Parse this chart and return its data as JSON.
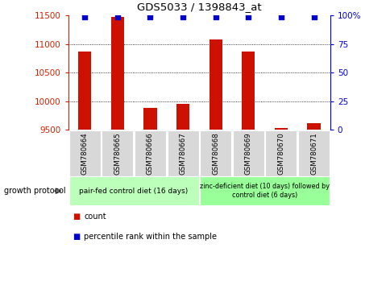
{
  "title": "GDS5033 / 1398843_at",
  "samples": [
    "GSM780664",
    "GSM780665",
    "GSM780666",
    "GSM780667",
    "GSM780668",
    "GSM780669",
    "GSM780670",
    "GSM780671"
  ],
  "counts": [
    10870,
    11480,
    9880,
    9950,
    11080,
    10870,
    9530,
    9620
  ],
  "percentile_ranks": [
    99,
    99,
    99,
    99,
    99,
    99,
    99,
    99
  ],
  "ylim_left": [
    9500,
    11500
  ],
  "ylim_right": [
    0,
    100
  ],
  "yticks_left": [
    9500,
    10000,
    10500,
    11000,
    11500
  ],
  "yticks_right": [
    0,
    25,
    50,
    75,
    100
  ],
  "bar_color": "#cc1100",
  "dot_color": "#0000cc",
  "group1_label": "pair-fed control diet (16 days)",
  "group2_label": "zinc-deficient diet (10 days) followed by\ncontrol diet (6 days)",
  "group1_color": "#bbffbb",
  "group2_color": "#99ff99",
  "sample_bg_color": "#d8d8d8",
  "growth_protocol_label": "growth protocol",
  "legend_count_label": "count",
  "legend_pct_label": "percentile rank within the sample",
  "bar_width": 0.4,
  "left_tick_color": "#cc2200",
  "right_tick_color": "#0000cc"
}
